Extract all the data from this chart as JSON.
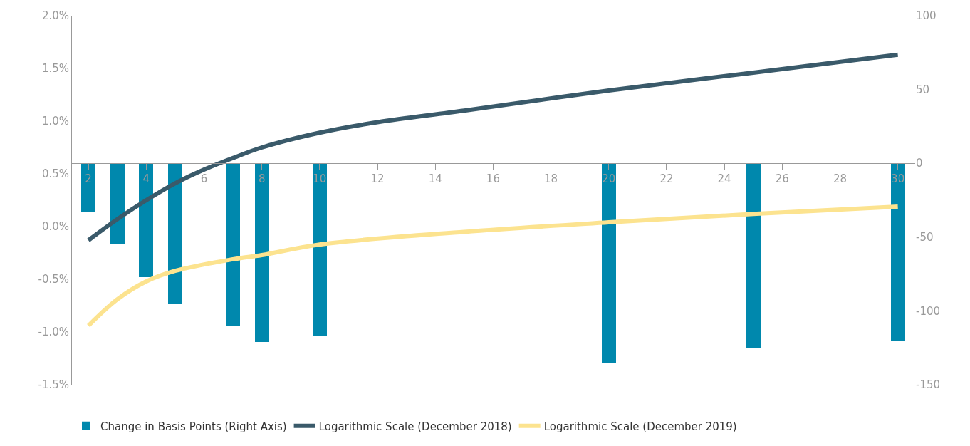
{
  "chart_data": {
    "type": "bar",
    "x": [
      2,
      3,
      4,
      5,
      7,
      8,
      10,
      20,
      25,
      30
    ],
    "xlim": [
      1.43,
      30.6
    ],
    "xticks": [
      2,
      4,
      6,
      8,
      10,
      12,
      14,
      16,
      18,
      20,
      22,
      24,
      26,
      28,
      30
    ],
    "ylim": [
      -1.5,
      2.0
    ],
    "yticks": [
      {
        "value": -1.5,
        "label": "-1.5%"
      },
      {
        "value": -1.0,
        "label": "-1.0%"
      },
      {
        "value": -0.5,
        "label": "-0.5%"
      },
      {
        "value": 0.0,
        "label": "0.0%"
      },
      {
        "value": 0.5,
        "label": "0.5%"
      },
      {
        "value": 1.0,
        "label": "1.0%"
      },
      {
        "value": 1.5,
        "label": "1.5%"
      },
      {
        "value": 2.0,
        "label": "2.0%"
      }
    ],
    "y2lim": [
      -150,
      100
    ],
    "y2ticks": [
      -150,
      -100,
      -50,
      0,
      50,
      100
    ],
    "series": [
      {
        "name": "Change in Basis Points (Right Axis)",
        "axis": "y2",
        "color": "#0088ad",
        "values": [
          -33,
          -55,
          -77,
          -95,
          -110,
          -121,
          -117,
          -135,
          -125,
          -120
        ]
      },
      {
        "name": "Logarithmic Scale (December 2018)",
        "type": "line",
        "color": "#3a5a6a",
        "x": [
          2,
          3,
          4,
          5,
          6,
          7,
          8,
          10,
          12,
          15,
          20,
          25,
          30
        ],
        "values": [
          -0.13,
          0.07,
          0.25,
          0.41,
          0.54,
          0.65,
          0.75,
          0.89,
          0.99,
          1.1,
          1.29,
          1.46,
          1.63
        ]
      },
      {
        "name": "Logarithmic Scale (December 2019)",
        "type": "line",
        "color": "#fce38f",
        "x": [
          2,
          3,
          4,
          5,
          7,
          8,
          10,
          15,
          20,
          25,
          30
        ],
        "values": [
          -0.94,
          -0.69,
          -0.52,
          -0.42,
          -0.31,
          -0.27,
          -0.17,
          -0.05,
          0.04,
          0.12,
          0.19
        ]
      }
    ],
    "legend": "bottom"
  }
}
